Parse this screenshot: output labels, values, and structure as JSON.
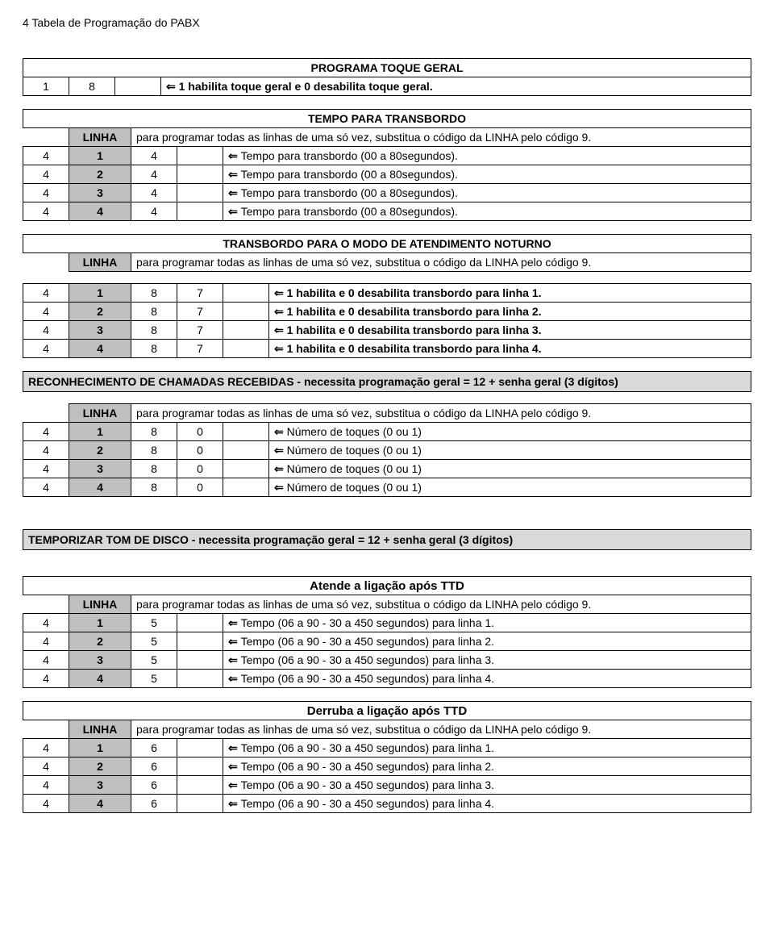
{
  "header": "4   Tabela de Programação do PABX",
  "t1": {
    "title": "PROGRAMA TOQUE GERAL",
    "cells": [
      "1",
      "8",
      ""
    ],
    "desc": "1 habilita toque geral e 0 desabilita toque geral."
  },
  "t2": {
    "title": "TEMPO PARA TRANSBORDO",
    "linha_label": "LINHA",
    "linha_desc": "para programar todas as linhas de uma só vez, substitua o código da LINHA pelo código 9.",
    "rows": [
      {
        "c": [
          "4",
          "1",
          "4",
          ""
        ],
        "d": "Tempo para transbordo (00 a 80segundos)."
      },
      {
        "c": [
          "4",
          "2",
          "4",
          ""
        ],
        "d": "Tempo para transbordo (00 a 80segundos)."
      },
      {
        "c": [
          "4",
          "3",
          "4",
          ""
        ],
        "d": "Tempo para transbordo (00 a 80segundos)."
      },
      {
        "c": [
          "4",
          "4",
          "4",
          ""
        ],
        "d": "Tempo para transbordo (00 a 80segundos)."
      }
    ]
  },
  "t3": {
    "title": "TRANSBORDO PARA O MODO DE ATENDIMENTO NOTURNO",
    "linha_label": "LINHA",
    "linha_desc": "para programar todas as linhas de uma só vez, substitua o código da LINHA pelo código 9.",
    "rows": [
      {
        "c": [
          "4",
          "1",
          "8",
          "7",
          ""
        ],
        "d": "1 habilita e 0 desabilita transbordo para linha 1."
      },
      {
        "c": [
          "4",
          "2",
          "8",
          "7",
          ""
        ],
        "d": "1 habilita e 0 desabilita transbordo para linha 2."
      },
      {
        "c": [
          "4",
          "3",
          "8",
          "7",
          ""
        ],
        "d": "1 habilita e 0 desabilita transbordo para linha 3."
      },
      {
        "c": [
          "4",
          "4",
          "8",
          "7",
          ""
        ],
        "d": "1 habilita e 0 desabilita transbordo para linha 4."
      }
    ]
  },
  "sec1": "RECONHECIMENTO DE CHAMADAS RECEBIDAS - necessita programação geral = 12 + senha geral (3 dígitos)",
  "t4": {
    "linha_label": "LINHA",
    "linha_desc": "para programar todas as linhas de uma só vez, substitua o código da LINHA pelo código 9.",
    "rows": [
      {
        "c": [
          "4",
          "1",
          "8",
          "0",
          ""
        ],
        "d": "Número de toques (0 ou 1)"
      },
      {
        "c": [
          "4",
          "2",
          "8",
          "0",
          ""
        ],
        "d": "Número de toques (0 ou 1)"
      },
      {
        "c": [
          "4",
          "3",
          "8",
          "0",
          ""
        ],
        "d": "Número de toques (0 ou 1)"
      },
      {
        "c": [
          "4",
          "4",
          "8",
          "0",
          ""
        ],
        "d": "Número de toques (0 ou 1)"
      }
    ]
  },
  "sec2": "TEMPORIZAR TOM DE DISCO - necessita programação geral = 12 + senha geral (3 dígitos)",
  "t5": {
    "title": "Atende a ligação após TTD",
    "linha_label": "LINHA",
    "linha_desc": "para programar todas as linhas de uma só vez, substitua o código da LINHA pelo código 9.",
    "rows": [
      {
        "c": [
          "4",
          "1",
          "5",
          ""
        ],
        "d": "Tempo (06 a 90 - 30 a 450 segundos) para linha 1."
      },
      {
        "c": [
          "4",
          "2",
          "5",
          ""
        ],
        "d": "Tempo (06 a 90 - 30 a 450 segundos) para linha 2."
      },
      {
        "c": [
          "4",
          "3",
          "5",
          ""
        ],
        "d": "Tempo (06 a 90 - 30 a 450 segundos) para linha 3."
      },
      {
        "c": [
          "4",
          "4",
          "5",
          ""
        ],
        "d": "Tempo (06 a 90 - 30 a 450 segundos) para linha 4."
      }
    ]
  },
  "t6": {
    "title": "Derruba  a ligação após TTD",
    "linha_label": "LINHA",
    "linha_desc": "para programar todas as linhas de uma só vez, substitua o código da LINHA pelo código 9.",
    "rows": [
      {
        "c": [
          "4",
          "1",
          "6",
          ""
        ],
        "d": "Tempo (06 a 90 - 30 a 450 segundos) para linha 1."
      },
      {
        "c": [
          "4",
          "2",
          "6",
          ""
        ],
        "d": "Tempo (06 a 90 - 30 a 450 segundos) para linha 2."
      },
      {
        "c": [
          "4",
          "3",
          "6",
          ""
        ],
        "d": "Tempo (06 a 90 - 30 a 450 segundos) para linha 3."
      },
      {
        "c": [
          "4",
          "4",
          "6",
          ""
        ],
        "d": "Tempo (06 a 90 - 30 a 450 segundos) para linha 4."
      }
    ]
  }
}
